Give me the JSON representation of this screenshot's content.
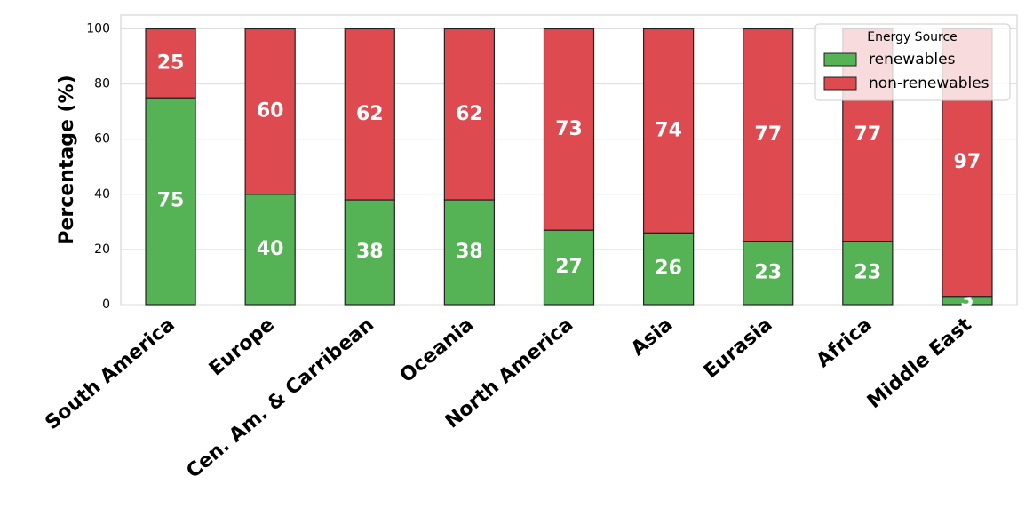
{
  "chart_data": {
    "type": "stacked_bar",
    "categories": [
      "South America",
      "Europe",
      "Cen. Am. & Carribean",
      "Oceania",
      "North America",
      "Asia",
      "Eurasia",
      "Africa",
      "Middle East"
    ],
    "series": [
      {
        "name": "renewables",
        "color": "#55b255",
        "values": [
          75,
          40,
          38,
          38,
          27,
          26,
          23,
          23,
          3
        ]
      },
      {
        "name": "non-renewables",
        "color": "#dd4b50",
        "values": [
          25,
          60,
          62,
          62,
          73,
          74,
          77,
          77,
          97
        ]
      }
    ],
    "y_label": "Percentage (%)",
    "legend_title": "Energy Source",
    "legend_position": "upper right",
    "ylim": [
      0,
      105
    ],
    "yticks": [
      0,
      20,
      40,
      60,
      80,
      100
    ],
    "grid": true
  }
}
